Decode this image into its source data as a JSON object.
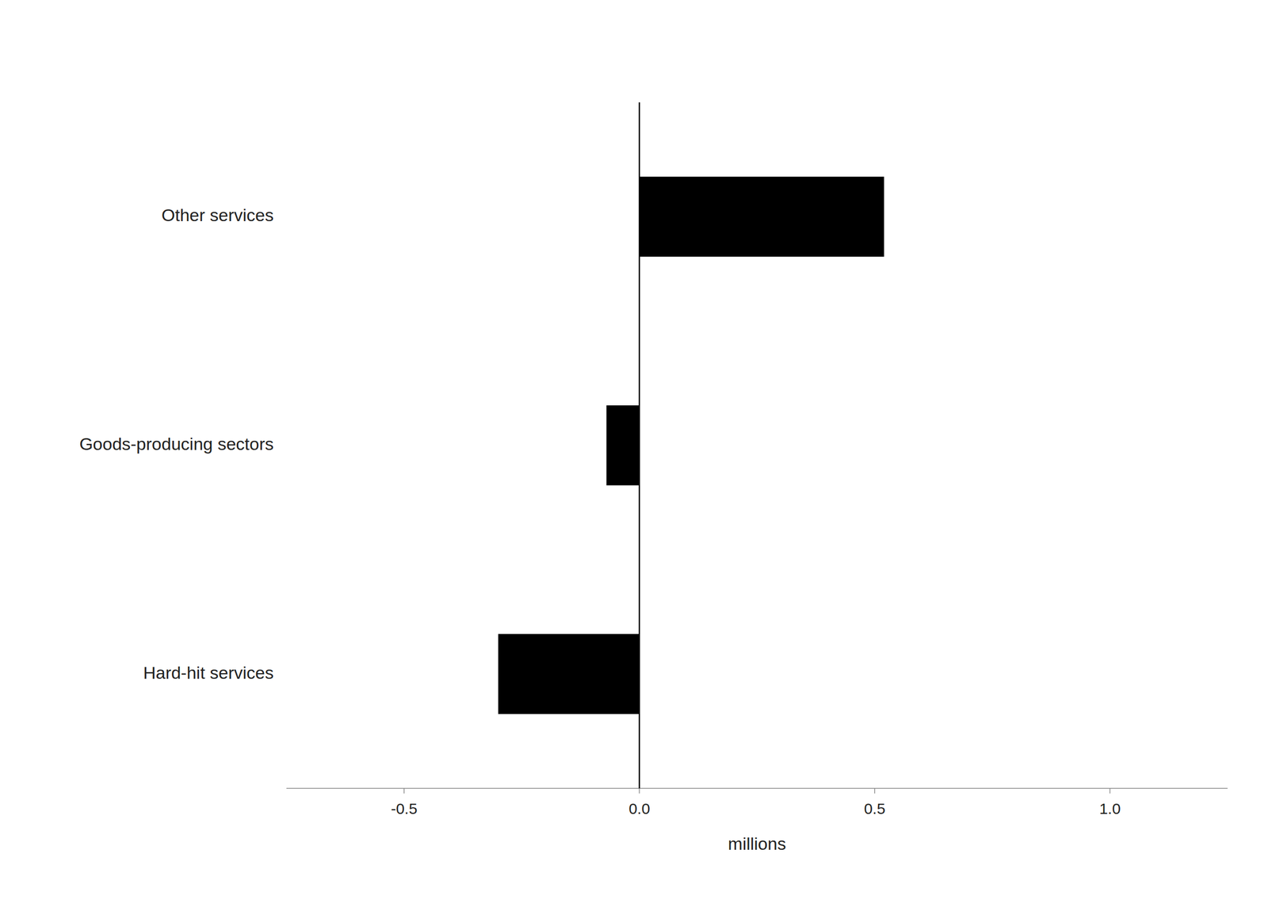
{
  "chart_data": {
    "type": "bar",
    "orientation": "horizontal",
    "categories": [
      "Hard-hit services",
      "Goods-producing sectors",
      "Other services"
    ],
    "values": [
      -0.3,
      -0.07,
      0.52
    ],
    "color": "#000000",
    "xlabel": "millions",
    "xlim": [
      -0.75,
      1.25
    ],
    "xticks": [
      -0.5,
      {
        "value": 0,
        "label": "0.0"
      },
      0.5,
      {
        "value": 1,
        "label": "1.0"
      }
    ],
    "grid": false
  }
}
